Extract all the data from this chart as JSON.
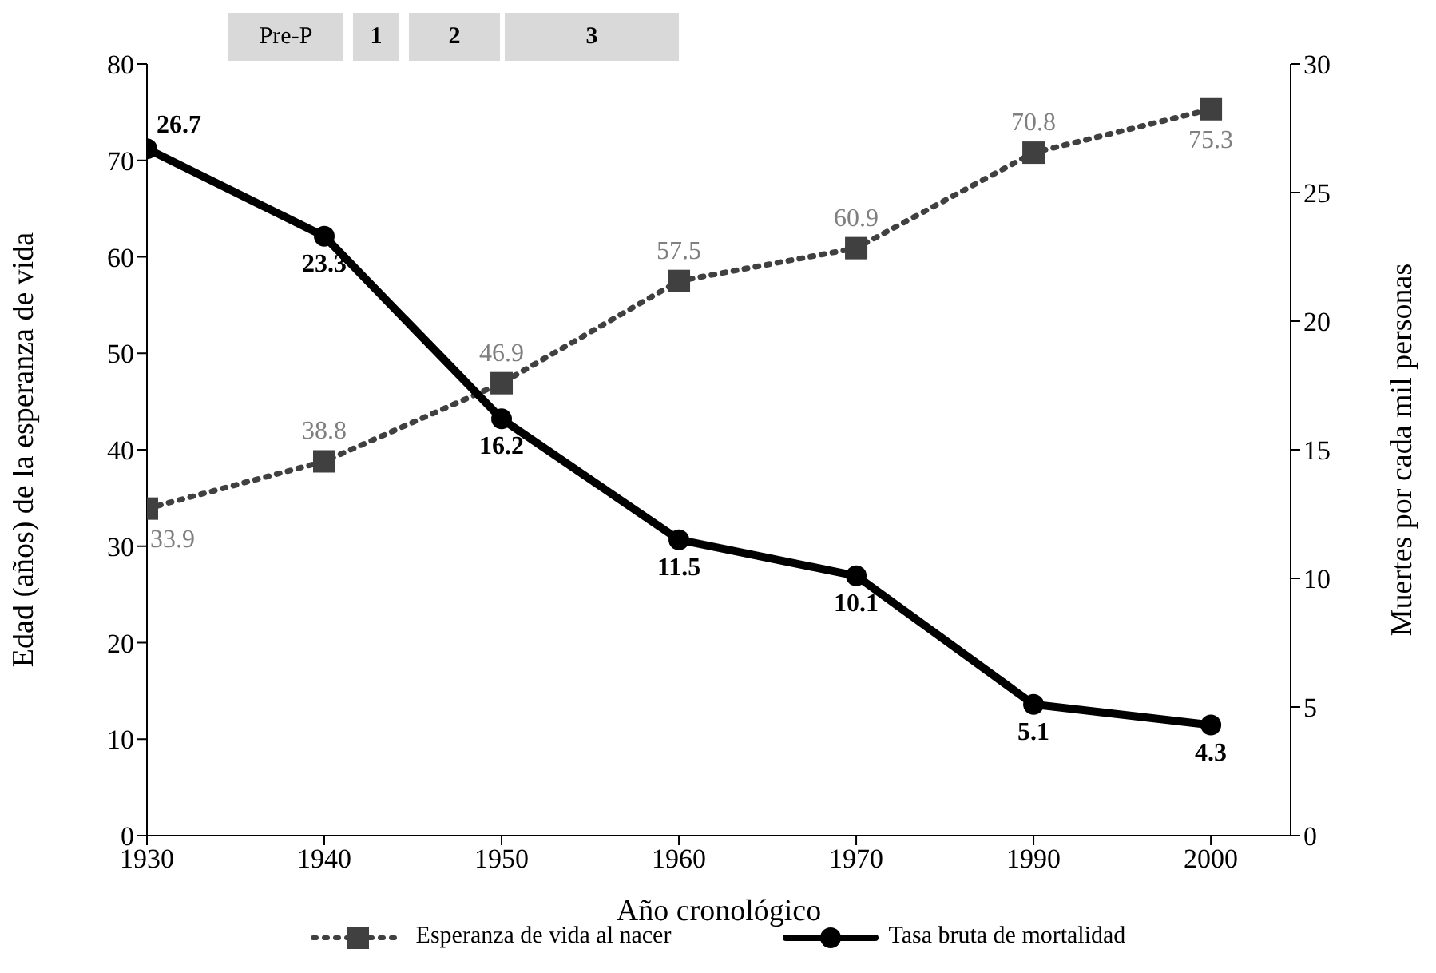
{
  "chart_data": {
    "type": "line",
    "xlabel": "Año cronológico",
    "ylabel": "Edad (años) de la esperanza de vida",
    "y2label": "Muertes por cada mil personas",
    "categories": [
      "1930",
      "1940",
      "1950",
      "1960",
      "1970",
      "1990",
      "2000"
    ],
    "series": [
      {
        "name": "Esperanza de vida al nacer",
        "color": "#404040",
        "values": [
          33.9,
          38.8,
          46.9,
          57.5,
          60.9,
          70.8,
          75.3
        ],
        "marker": "square",
        "line_style": "dotted"
      },
      {
        "name": "Tasa bruta de mortalidad",
        "color": "#000000",
        "values": [
          26.7,
          23.3,
          16.2,
          11.5,
          10.1,
          5.1,
          4.3
        ],
        "axis": "y2",
        "marker": "circle",
        "line_style": "solid"
      }
    ],
    "ylim": [
      0,
      80
    ],
    "yticks": [
      0,
      10,
      20,
      30,
      40,
      50,
      60,
      70,
      80
    ],
    "y2lim": [
      0,
      30
    ],
    "y2ticks": [
      0,
      5,
      10,
      15,
      20,
      25,
      30
    ],
    "data_labels": true,
    "legend": "bottom",
    "grid": false,
    "annotations": [
      "Pre-P",
      "1",
      "2",
      "3"
    ]
  }
}
